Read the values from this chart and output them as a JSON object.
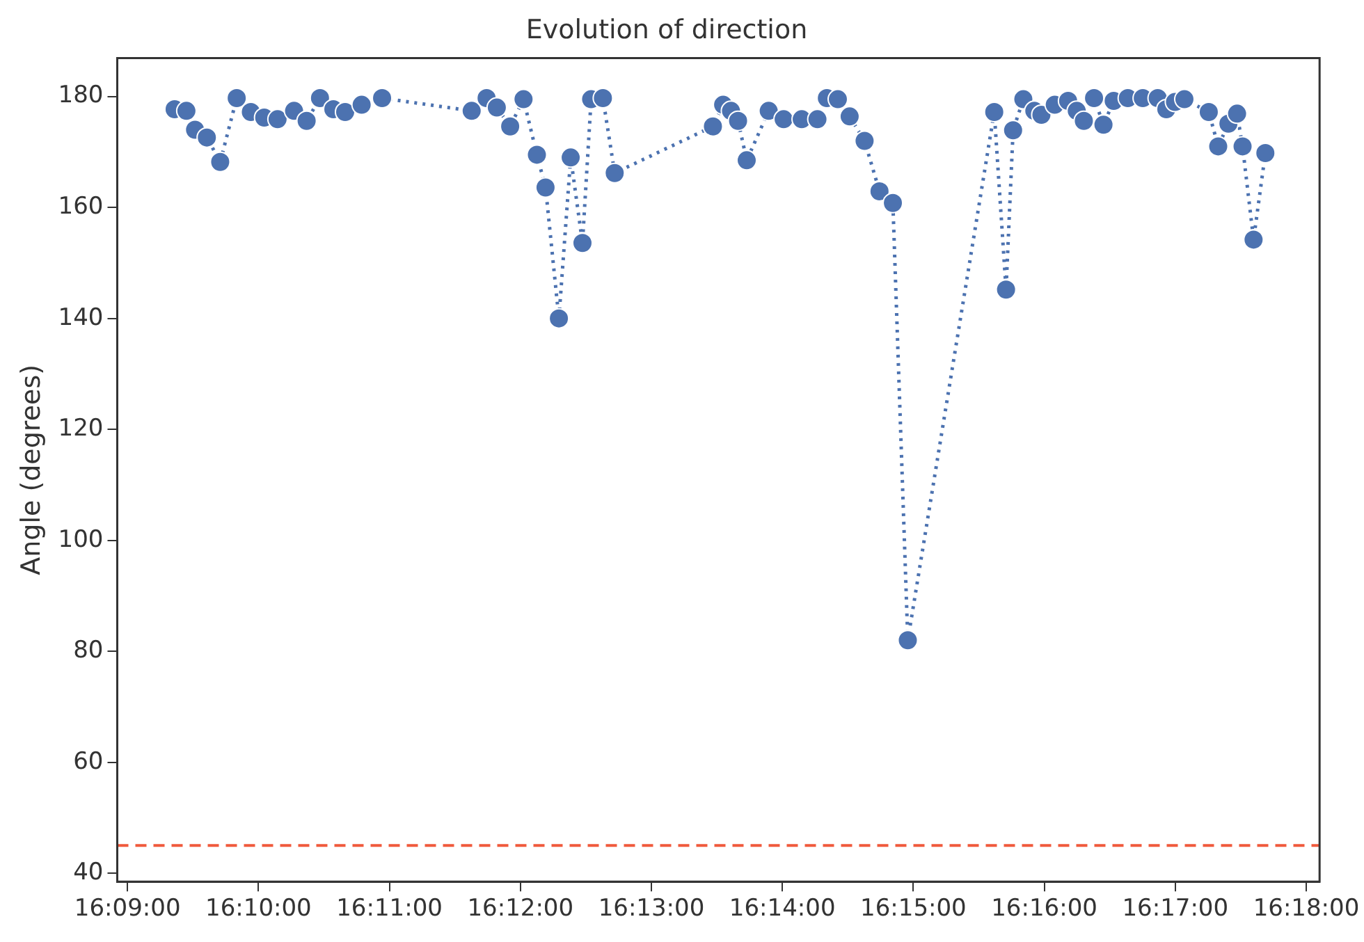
{
  "chart_data": {
    "type": "line",
    "title": "Evolution of direction",
    "ylabel": "Angle (degrees)",
    "series": [
      {
        "color": "#4c72b0",
        "marker": "circle",
        "line_style": "dotted",
        "x": [
          16.156,
          16.1575,
          16.1586,
          16.1601,
          16.1618,
          16.1639,
          16.1657,
          16.1674,
          16.1691,
          16.1712,
          16.1728,
          16.1745,
          16.1762,
          16.1777,
          16.1798,
          16.1824,
          16.1938,
          16.1957,
          16.197,
          16.1987,
          16.2004,
          16.2021,
          16.2032,
          16.2049,
          16.2064,
          16.2079,
          16.209,
          16.2105,
          16.212,
          16.2245,
          16.2258,
          16.2268,
          16.2277,
          16.2288,
          16.2316,
          16.2335,
          16.2358,
          16.2378,
          16.239,
          16.2404,
          16.2419,
          16.2438,
          16.2457,
          16.2474,
          16.2493,
          16.2603,
          16.2618,
          16.2627,
          16.264,
          16.2654,
          16.2663,
          16.268,
          16.2697,
          16.2708,
          16.2717,
          16.273,
          16.2742,
          16.2755,
          16.2773,
          16.2792,
          16.2811,
          16.2822,
          16.2833,
          16.2845,
          16.2876,
          16.2888,
          16.2901,
          16.2912,
          16.2919,
          16.2933,
          16.2948
        ],
        "values": [
          177.7,
          177.4,
          174,
          172.6,
          168.2,
          179.7,
          177.2,
          176.2,
          175.9,
          177.4,
          175.6,
          179.7,
          177.7,
          177.2,
          178.5,
          179.7,
          177.4,
          179.7,
          178,
          174.6,
          179.5,
          169.5,
          163.6,
          140,
          169,
          153.6,
          179.5,
          179.7,
          166.2,
          174.6,
          178.5,
          177.4,
          175.6,
          168.5,
          177.4,
          175.9,
          175.9,
          175.9,
          179.7,
          179.5,
          176.4,
          172,
          162.9,
          160.8,
          82,
          177.2,
          145.2,
          173.9,
          179.5,
          177.4,
          176.7,
          178.5,
          179.2,
          177.4,
          175.6,
          179.7,
          174.9,
          179.2,
          179.7,
          179.7,
          179.7,
          177.7,
          179,
          179.5,
          177.2,
          171,
          175.1,
          176.9,
          171,
          154.2,
          169.8
        ]
      }
    ],
    "xlim": [
      16.1487,
      16.3017
    ],
    "xticks": [
      {
        "value": 16.15,
        "label": "16:09:00"
      },
      {
        "value": 16.166667,
        "label": "16:10:00"
      },
      {
        "value": 16.183333,
        "label": "16:11:00"
      },
      {
        "value": 16.2,
        "label": "16:12:00"
      },
      {
        "value": 16.216667,
        "label": "16:13:00"
      },
      {
        "value": 16.233333,
        "label": "16:14:00"
      },
      {
        "value": 16.25,
        "label": "16:15:00"
      },
      {
        "value": 16.266667,
        "label": "16:16:00"
      },
      {
        "value": 16.283333,
        "label": "16:17:00"
      },
      {
        "value": 16.3,
        "label": "16:18:00"
      }
    ],
    "ylim": [
      38.5,
      186.9
    ],
    "yticks": [
      40,
      60,
      80,
      100,
      120,
      140,
      160,
      180
    ],
    "ref_lines": [
      {
        "axis": "y",
        "value": 45,
        "color": "#f05a3c",
        "line_style": "dashed"
      }
    ],
    "grid": false,
    "legend": false
  }
}
